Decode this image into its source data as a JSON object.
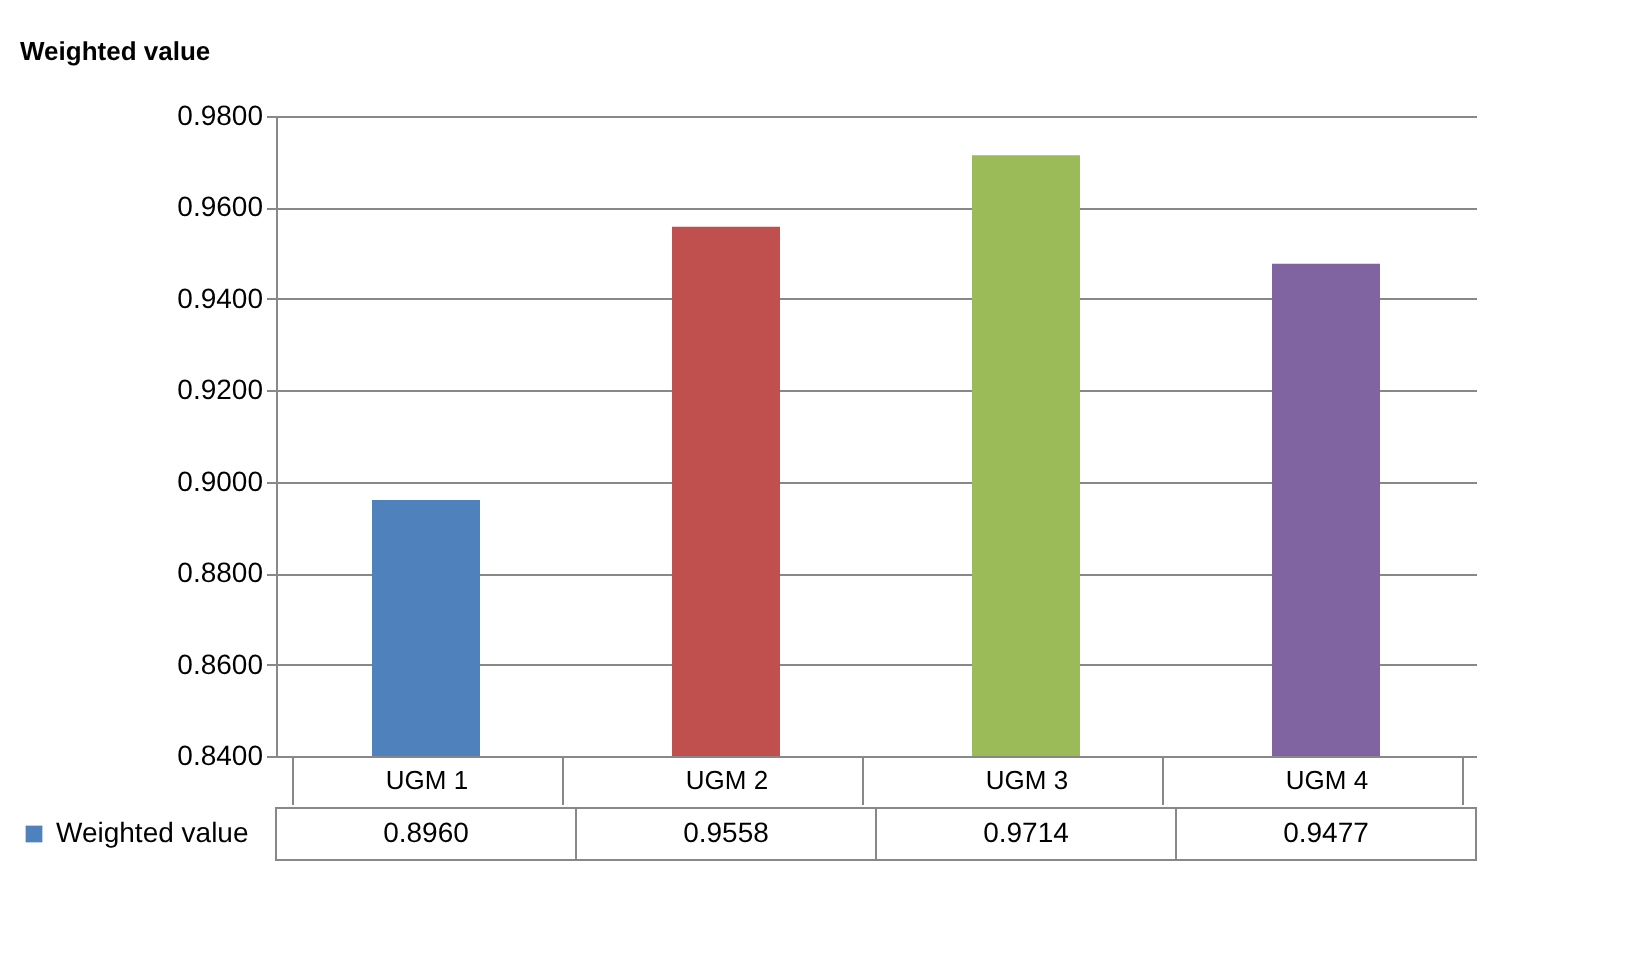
{
  "chart_data": {
    "type": "bar",
    "title": "Weighted value",
    "categories": [
      "UGM 1",
      "UGM 2",
      "UGM 3",
      "UGM 4"
    ],
    "series": [
      {
        "name": "Weighted value",
        "colors": [
          "#4f81bd",
          "#c0504d",
          "#9bbb59",
          "#8064a2"
        ],
        "values": [
          0.896,
          0.9558,
          0.9714,
          0.9477
        ],
        "value_labels": [
          "0.8960",
          "0.9558",
          "0.9714",
          "0.9477"
        ]
      }
    ],
    "ylim": [
      0.84,
      0.98
    ],
    "yticks": [
      {
        "value": 0.84,
        "label": "0.8400"
      },
      {
        "value": 0.86,
        "label": "0.8600"
      },
      {
        "value": 0.88,
        "label": "0.8800"
      },
      {
        "value": 0.9,
        "label": "0.9000"
      },
      {
        "value": 0.92,
        "label": "0.9200"
      },
      {
        "value": 0.94,
        "label": "0.9400"
      },
      {
        "value": 0.96,
        "label": "0.9600"
      },
      {
        "value": 0.98,
        "label": "0.9800"
      }
    ],
    "grid": "y",
    "legend": "bottom left"
  }
}
